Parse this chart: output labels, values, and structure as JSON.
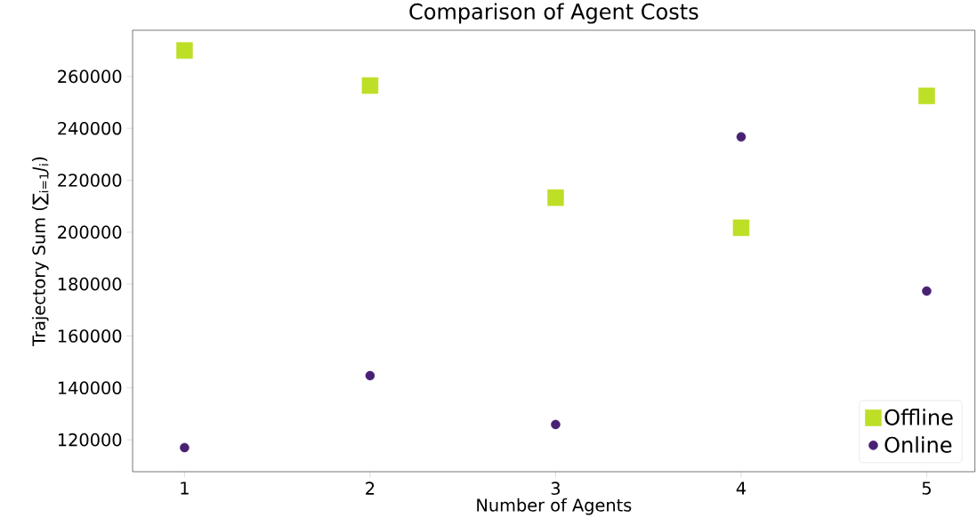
{
  "chart_data": {
    "type": "scatter",
    "title": "Comparison of Agent Costs",
    "xlabel": "Number of Agents",
    "ylabel": "Trajectory Sum (∑$_{i=1}$*J*$_{i}$)",
    "x": [
      1,
      2,
      3,
      4,
      5
    ],
    "series": [
      {
        "name": "Offline",
        "color": "#bddf26",
        "marker": "square",
        "values": [
          270000,
          256500,
          213300,
          201700,
          252500
        ]
      },
      {
        "name": "Online",
        "color": "#482173",
        "marker": "circle",
        "values": [
          117000,
          144700,
          125900,
          236700,
          177300
        ]
      }
    ],
    "xlim": [
      0.72,
      5.26
    ],
    "ylim": [
      107700,
      277800
    ],
    "xticks": [
      1,
      2,
      3,
      4,
      5
    ],
    "yticks": [
      120000,
      140000,
      160000,
      180000,
      200000,
      220000,
      240000,
      260000
    ],
    "grid": false,
    "legend": "bottom right"
  }
}
